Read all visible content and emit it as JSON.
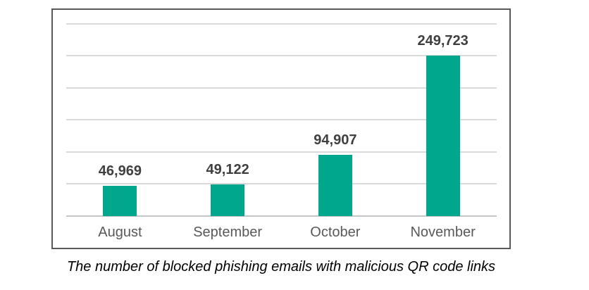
{
  "colors": {
    "background": "#FFFFFF",
    "bar": "#00A78C",
    "gridline": "#D9D9D9",
    "axis_line": "#C6C6C6",
    "frame_border": "#595959",
    "value_label": "#3F3F3F",
    "category_label": "#595959",
    "caption_text": "#000000"
  },
  "chart_data": {
    "type": "bar",
    "categories": [
      "August",
      "September",
      "October",
      "November"
    ],
    "values": [
      46969,
      49122,
      94907,
      249723
    ],
    "value_labels": [
      "46,969",
      "49,122",
      "94,907",
      "249,723"
    ],
    "title": "",
    "xlabel": "",
    "ylabel": "",
    "ylim": [
      0,
      300000
    ],
    "gridline_step": 50000,
    "grid": true,
    "legend": false,
    "y_tick_labels_visible": false,
    "bar_color": "#00A78C"
  },
  "caption": {
    "text": "The number of blocked phishing emails with malicious QR code links"
  }
}
